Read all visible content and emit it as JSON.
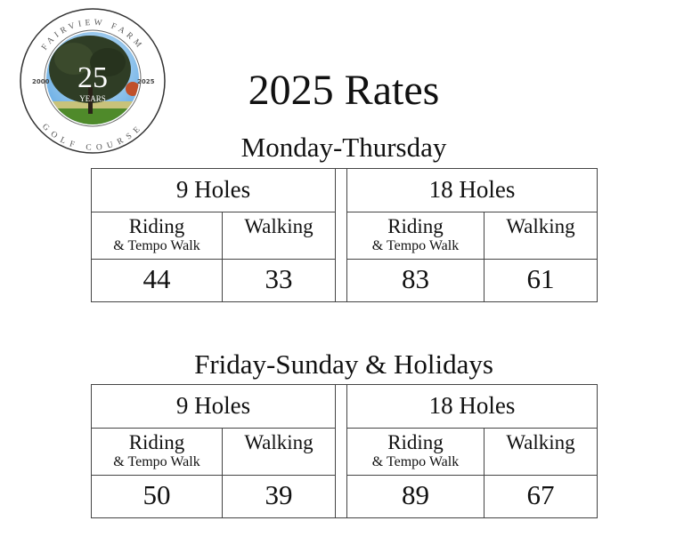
{
  "logo": {
    "top_text": "FAIRVIEW FARM",
    "bottom_text": "GOLF COURSE",
    "left_year": "2000",
    "right_year": "2025",
    "center": "25",
    "center_sub": "YEARS"
  },
  "title": "2025 Rates",
  "sections": [
    {
      "heading": "Monday-Thursday",
      "groups": [
        {
          "label": "9 Holes"
        },
        {
          "label": "18 Holes"
        }
      ],
      "riding": "Riding",
      "riding_note": "& Tempo Walk",
      "walking": "Walking",
      "values": [
        "44",
        "33",
        "83",
        "61"
      ]
    },
    {
      "heading": "Friday-Sunday & Holidays",
      "groups": [
        {
          "label": "9 Holes"
        },
        {
          "label": "18 Holes"
        }
      ],
      "riding": "Riding",
      "riding_note": "& Tempo Walk",
      "walking": "Walking",
      "values": [
        "50",
        "39",
        "89",
        "67"
      ]
    }
  ]
}
